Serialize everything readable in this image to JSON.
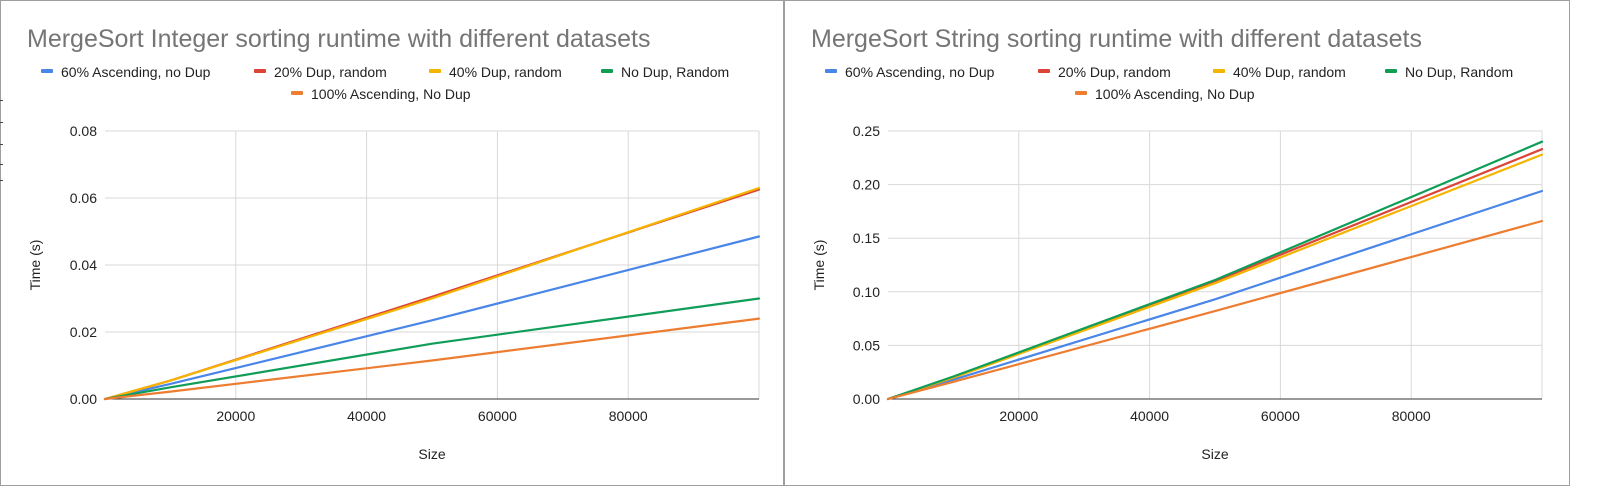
{
  "chart_data": [
    {
      "type": "line",
      "title": "MergeSort Integer sorting runtime with different datasets",
      "xlabel": "Size",
      "ylabel": "Time (s)",
      "xlim": [
        0,
        100000
      ],
      "ylim": [
        0,
        0.08
      ],
      "x_ticks": [
        20000,
        40000,
        60000,
        80000
      ],
      "y_ticks": [
        0,
        0.02,
        0.04,
        0.06,
        0.08
      ],
      "y_tick_labels": [
        "0.00",
        "0.02",
        "0.04",
        "0.06",
        "0.08"
      ],
      "x_tick_labels": [
        "20000",
        "40000",
        "60000",
        "80000"
      ],
      "grid": true,
      "legend_position": "top",
      "x": [
        0,
        10000,
        50000,
        100000
      ],
      "series": [
        {
          "name": "60% Ascending, no Dup",
          "color": "#4a86e8",
          "values": [
            0,
            0.0045,
            0.0235,
            0.0485
          ]
        },
        {
          "name": "20% Dup, random",
          "color": "#db4437",
          "values": [
            0,
            0.0055,
            0.0305,
            0.0625
          ]
        },
        {
          "name": "40% Dup, random",
          "color": "#f4b400",
          "values": [
            0,
            0.0055,
            0.03,
            0.063
          ]
        },
        {
          "name": "No Dup, Random",
          "color": "#0f9d58",
          "values": [
            0,
            0.0035,
            0.0165,
            0.03
          ]
        },
        {
          "name": "100% Ascending, No Dup",
          "color": "#ed7d31",
          "values": [
            0,
            0.0022,
            0.0115,
            0.024
          ]
        }
      ]
    },
    {
      "type": "line",
      "title": "MergeSort String sorting runtime with different datasets",
      "xlabel": "Size",
      "ylabel": "Time (s)",
      "xlim": [
        0,
        100000
      ],
      "ylim": [
        0,
        0.25
      ],
      "x_ticks": [
        20000,
        40000,
        60000,
        80000
      ],
      "y_ticks": [
        0,
        0.05,
        0.1,
        0.15,
        0.2,
        0.25
      ],
      "y_tick_labels": [
        "0.00",
        "0.05",
        "0.10",
        "0.15",
        "0.20",
        "0.25"
      ],
      "x_tick_labels": [
        "20000",
        "40000",
        "60000",
        "80000"
      ],
      "grid": true,
      "legend_position": "top",
      "x": [
        0,
        10000,
        50000,
        100000
      ],
      "series": [
        {
          "name": "60% Ascending, no Dup",
          "color": "#4a86e8",
          "values": [
            0,
            0.018,
            0.093,
            0.194
          ]
        },
        {
          "name": "20% Dup, random",
          "color": "#db4437",
          "values": [
            0,
            0.02,
            0.11,
            0.233
          ]
        },
        {
          "name": "40% Dup, random",
          "color": "#f4b400",
          "values": [
            0,
            0.02,
            0.108,
            0.228
          ]
        },
        {
          "name": "No Dup, Random",
          "color": "#0f9d58",
          "values": [
            0,
            0.021,
            0.111,
            0.24
          ]
        },
        {
          "name": "100% Ascending, No Dup",
          "color": "#ed7d31",
          "values": [
            0,
            0.016,
            0.082,
            0.166
          ]
        }
      ]
    }
  ]
}
